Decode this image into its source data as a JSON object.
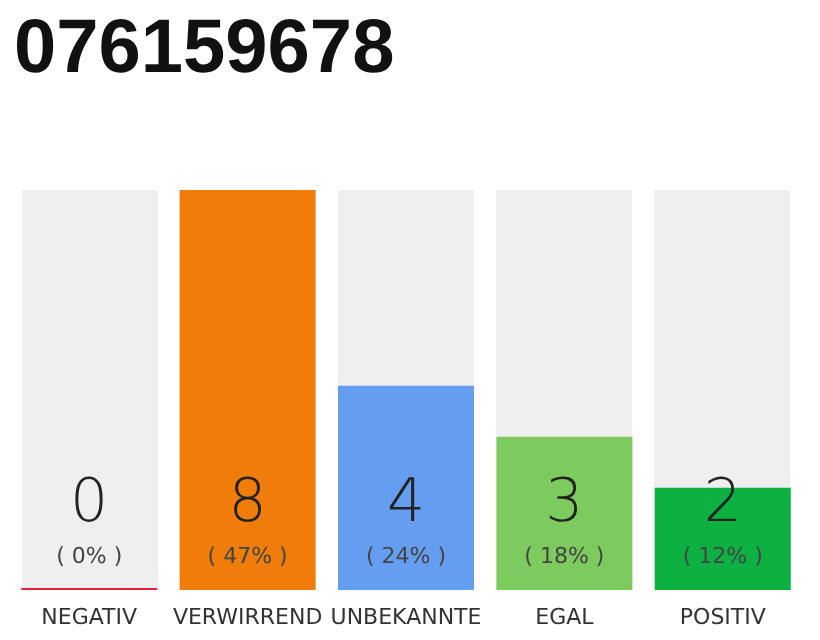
{
  "chart_data": {
    "type": "bar",
    "title": "076159678",
    "categories": [
      "NEGATIV",
      "VERWIRREND",
      "UNBEKANNTE",
      "EGAL",
      "POSITIV"
    ],
    "values": [
      0,
      47,
      24,
      18,
      12
    ],
    "colors": [
      "#e8203c",
      "#f07d0a",
      "#659df0",
      "#7dcb5f",
      "#0db142"
    ],
    "value_labels": [
      "( 0% )",
      "( 47% )",
      "( 24% )",
      "( 18% )",
      "( 12% )"
    ],
    "annotations": [
      "0",
      "8",
      "4",
      "3",
      "2"
    ],
    "tick_labels": "x"
  }
}
